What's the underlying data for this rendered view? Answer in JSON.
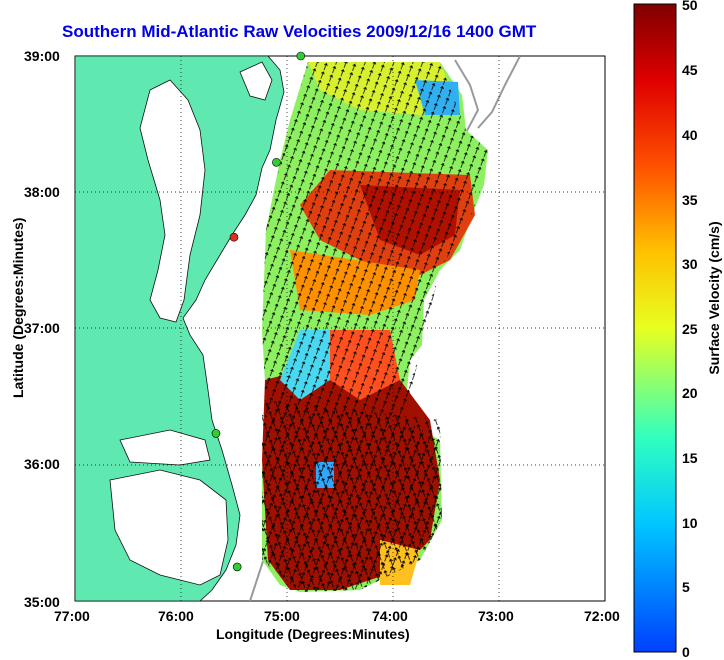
{
  "title": "Southern Mid-Atlantic Raw Velocities 2009/12/16 1400 GMT",
  "xlabel": "Longitude (Degrees:Minutes)",
  "ylabel": "Latitude (Degrees:Minutes)",
  "colorbar_label": "Surface Velocity (cm/s)",
  "x_ticks": [
    "77:00",
    "76:00",
    "75:00",
    "74:00",
    "73:00",
    "72:00"
  ],
  "y_ticks": [
    "39:00",
    "38:00",
    "37:00",
    "36:00",
    "35:00"
  ],
  "colorbar_ticks": [
    "50",
    "45",
    "40",
    "35",
    "30",
    "25",
    "20",
    "15",
    "10",
    "5",
    "0"
  ],
  "colors": {
    "land": "#5fe8b0",
    "title": "#0000e6",
    "station": "#33cc33",
    "station_red": "#e03020"
  },
  "chart_data": {
    "type": "map",
    "xlim": [
      -77,
      -72
    ],
    "ylim": [
      35,
      39
    ],
    "colorbar_range": [
      0,
      50
    ],
    "colorbar_units": "cm/s",
    "stations": [
      {
        "lon": -74.87,
        "lat": 39.0,
        "color": "green"
      },
      {
        "lon": -75.1,
        "lat": 38.22,
        "color": "green"
      },
      {
        "lon": -75.5,
        "lat": 37.67,
        "color": "red"
      },
      {
        "lon": -75.67,
        "lat": 36.23,
        "color": "green"
      },
      {
        "lon": -75.47,
        "lat": 35.25,
        "color": "green"
      }
    ]
  }
}
